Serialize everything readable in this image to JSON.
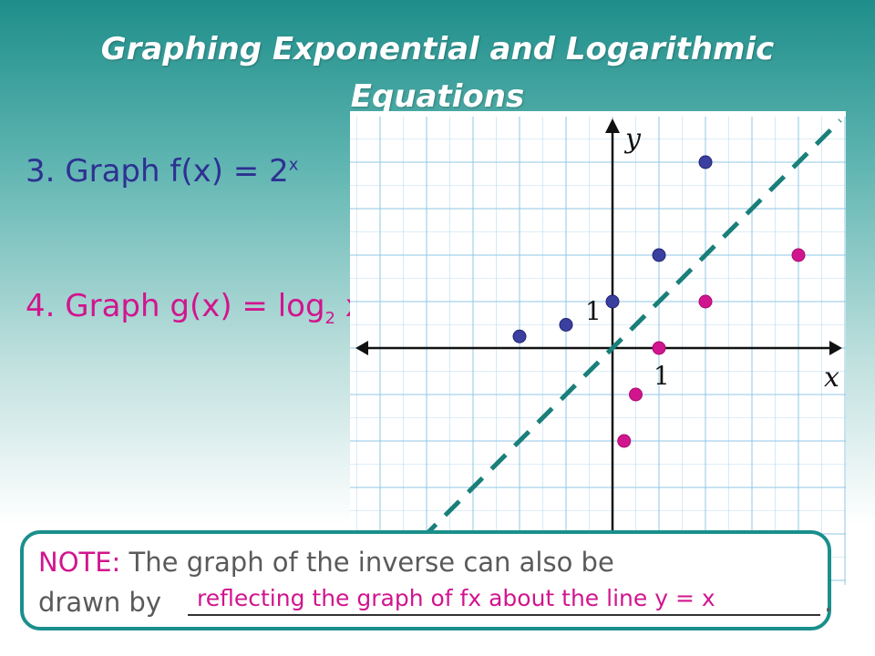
{
  "title": {
    "line1": "Graphing Exponential and Logarithmic",
    "line2": "Equations"
  },
  "problems": {
    "p3": {
      "number": "3.",
      "text": "Graph f(x) = 2",
      "superscript": "x"
    },
    "p4": {
      "number": "4.",
      "text": "Graph g(x) = log",
      "subscript": "2",
      "after": " x."
    }
  },
  "note": {
    "label": "NOTE:",
    "line1": "  The graph of the inverse can also be",
    "line2": "drawn by",
    "answer": "reflecting the graph of fx about the line y = x",
    "period": "."
  },
  "colors": {
    "exponential": "#3b3fa0",
    "logarithmic": "#d1158e",
    "reflection_line": "#1a7f7a",
    "grid": "#8fc7e6",
    "note_border": "#1a8f8c"
  },
  "chart_data": {
    "type": "scatter",
    "xlabel": "x",
    "ylabel": "y",
    "tick_labels": {
      "x": "1",
      "y": "1"
    },
    "xlim": [
      -5,
      5
    ],
    "ylim": [
      -4,
      5
    ],
    "grid": true,
    "series": [
      {
        "values": [
          [
            -2,
            0.25
          ],
          [
            -1,
            0.5
          ],
          [
            0,
            1
          ],
          [
            1,
            2
          ],
          [
            2,
            4
          ]
        ],
        "color": "#3b3fa0"
      },
      {
        "values": [
          [
            0.25,
            -2
          ],
          [
            0.5,
            -1
          ],
          [
            1,
            0
          ],
          [
            2,
            1
          ],
          [
            4,
            2
          ]
        ],
        "color": "#d1158e"
      }
    ],
    "reference_line": {
      "equation": "y = x",
      "style": "dashed",
      "color": "#1a7f7a"
    }
  }
}
